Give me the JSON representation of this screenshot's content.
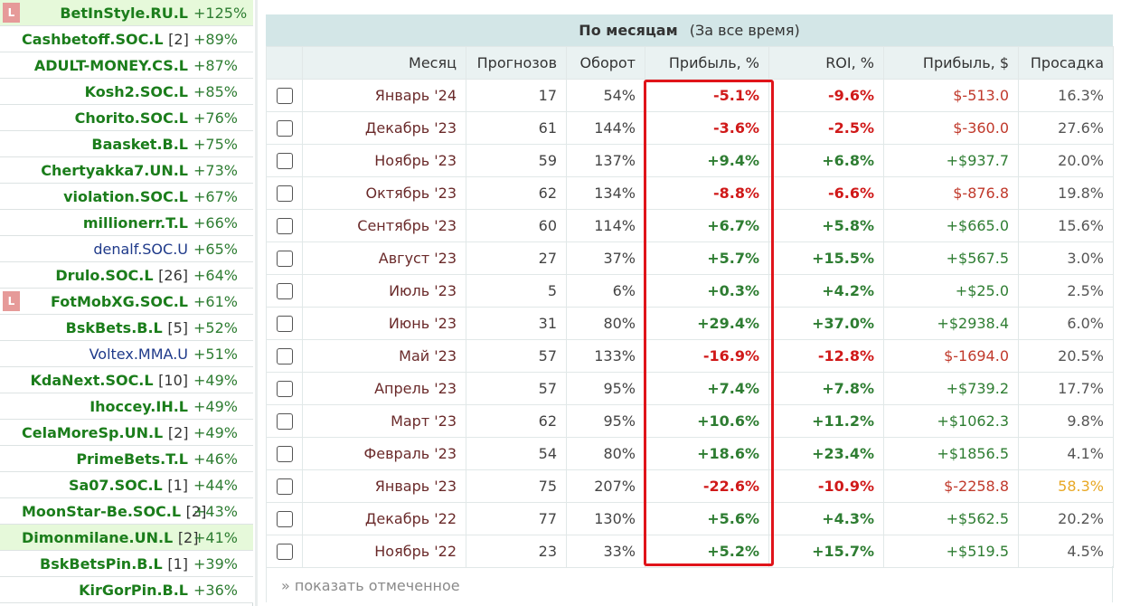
{
  "sidebar": {
    "items": [
      {
        "badge": "L",
        "name": "BetInStyle.RU.L",
        "count": "",
        "pct": "+125%",
        "style": "bold",
        "highlight": true
      },
      {
        "badge": "",
        "name": "Cashbetoff.SOC.L",
        "count": "[2]",
        "pct": "+89%",
        "style": "bold",
        "highlight": false
      },
      {
        "badge": "",
        "name": "ADULT-MONEY.CS.L",
        "count": "",
        "pct": "+87%",
        "style": "bold",
        "highlight": false
      },
      {
        "badge": "",
        "name": "Kosh2.SOC.L",
        "count": "",
        "pct": "+85%",
        "style": "bold",
        "highlight": false
      },
      {
        "badge": "",
        "name": "Chorito.SOC.L",
        "count": "",
        "pct": "+76%",
        "style": "bold",
        "highlight": false
      },
      {
        "badge": "",
        "name": "Baasket.B.L",
        "count": "",
        "pct": "+75%",
        "style": "bold",
        "highlight": false
      },
      {
        "badge": "",
        "name": "Chertyakka7.UN.L",
        "count": "",
        "pct": "+73%",
        "style": "bold",
        "highlight": false
      },
      {
        "badge": "",
        "name": "violation.SOC.L",
        "count": "",
        "pct": "+67%",
        "style": "bold",
        "highlight": false
      },
      {
        "badge": "",
        "name": "millionerr.T.L",
        "count": "",
        "pct": "+66%",
        "style": "bold",
        "highlight": false
      },
      {
        "badge": "",
        "name": "denalf.SOC.U",
        "count": "",
        "pct": "+65%",
        "style": "regular",
        "highlight": false
      },
      {
        "badge": "",
        "name": "Drulo.SOC.L",
        "count": "[26]",
        "pct": "+64%",
        "style": "bold",
        "highlight": false
      },
      {
        "badge": "L",
        "name": "FotMobXG.SOC.L",
        "count": "",
        "pct": "+61%",
        "style": "bold",
        "highlight": false
      },
      {
        "badge": "",
        "name": "BskBets.B.L",
        "count": "[5]",
        "pct": "+52%",
        "style": "bold",
        "highlight": false
      },
      {
        "badge": "",
        "name": "Voltex.MMA.U",
        "count": "",
        "pct": "+51%",
        "style": "regular",
        "highlight": false
      },
      {
        "badge": "",
        "name": "KdaNext.SOC.L",
        "count": "[10]",
        "pct": "+49%",
        "style": "bold",
        "highlight": false
      },
      {
        "badge": "",
        "name": "Ihoccey.IH.L",
        "count": "",
        "pct": "+49%",
        "style": "bold",
        "highlight": false
      },
      {
        "badge": "",
        "name": "CelaMoreSp.UN.L",
        "count": "[2]",
        "pct": "+49%",
        "style": "bold",
        "highlight": false
      },
      {
        "badge": "",
        "name": "PrimeBets.T.L",
        "count": "",
        "pct": "+46%",
        "style": "bold",
        "highlight": false
      },
      {
        "badge": "",
        "name": "Sa07.SOC.L",
        "count": "[1]",
        "pct": "+44%",
        "style": "bold",
        "highlight": false
      },
      {
        "badge": "",
        "name": "MoonStar-Be.SOC.L",
        "count": "[2]",
        "pct": "+43%",
        "style": "bold",
        "highlight": false
      },
      {
        "badge": "",
        "name": "Dimonmilane.UN.L",
        "count": "[2]",
        "pct": "+41%",
        "style": "bold",
        "highlight": true
      },
      {
        "badge": "",
        "name": "BskBetsPin.B.L",
        "count": "[1]",
        "pct": "+39%",
        "style": "bold",
        "highlight": false
      },
      {
        "badge": "",
        "name": "KirGorPin.B.L",
        "count": "",
        "pct": "+36%",
        "style": "bold",
        "highlight": false
      }
    ]
  },
  "panel": {
    "title": "По месяцам",
    "subtitle": "(За все время)",
    "columns": [
      "",
      "Месяц",
      "Прогнозов",
      "Оборот",
      "Прибыль, %",
      "ROI, %",
      "Прибыль, $",
      "Просадка"
    ],
    "rows": [
      {
        "month": "Январь '24",
        "forecasts": "17",
        "turnover": "54%",
        "profit_pct": "-5.1%",
        "roi": "-9.6%",
        "profit_usd": "$-513.0",
        "drawdown": "16.3%"
      },
      {
        "month": "Декабрь '23",
        "forecasts": "61",
        "turnover": "144%",
        "profit_pct": "-3.6%",
        "roi": "-2.5%",
        "profit_usd": "$-360.0",
        "drawdown": "27.6%"
      },
      {
        "month": "Ноябрь '23",
        "forecasts": "59",
        "turnover": "137%",
        "profit_pct": "+9.4%",
        "roi": "+6.8%",
        "profit_usd": "+$937.7",
        "drawdown": "20.0%"
      },
      {
        "month": "Октябрь '23",
        "forecasts": "62",
        "turnover": "134%",
        "profit_pct": "-8.8%",
        "roi": "-6.6%",
        "profit_usd": "$-876.8",
        "drawdown": "19.8%"
      },
      {
        "month": "Сентябрь '23",
        "forecasts": "60",
        "turnover": "114%",
        "profit_pct": "+6.7%",
        "roi": "+5.8%",
        "profit_usd": "+$665.0",
        "drawdown": "15.6%"
      },
      {
        "month": "Август '23",
        "forecasts": "27",
        "turnover": "37%",
        "profit_pct": "+5.7%",
        "roi": "+15.5%",
        "profit_usd": "+$567.5",
        "drawdown": "3.0%"
      },
      {
        "month": "Июль '23",
        "forecasts": "5",
        "turnover": "6%",
        "profit_pct": "+0.3%",
        "roi": "+4.2%",
        "profit_usd": "+$25.0",
        "drawdown": "2.5%"
      },
      {
        "month": "Июнь '23",
        "forecasts": "31",
        "turnover": "80%",
        "profit_pct": "+29.4%",
        "roi": "+37.0%",
        "profit_usd": "+$2938.4",
        "drawdown": "6.0%"
      },
      {
        "month": "Май '23",
        "forecasts": "57",
        "turnover": "133%",
        "profit_pct": "-16.9%",
        "roi": "-12.8%",
        "profit_usd": "$-1694.0",
        "drawdown": "20.5%"
      },
      {
        "month": "Апрель '23",
        "forecasts": "57",
        "turnover": "95%",
        "profit_pct": "+7.4%",
        "roi": "+7.8%",
        "profit_usd": "+$739.2",
        "drawdown": "17.7%"
      },
      {
        "month": "Март '23",
        "forecasts": "62",
        "turnover": "95%",
        "profit_pct": "+10.6%",
        "roi": "+11.2%",
        "profit_usd": "+$1062.3",
        "drawdown": "9.8%"
      },
      {
        "month": "Февраль '23",
        "forecasts": "54",
        "turnover": "80%",
        "profit_pct": "+18.6%",
        "roi": "+23.4%",
        "profit_usd": "+$1856.5",
        "drawdown": "4.1%"
      },
      {
        "month": "Январь '23",
        "forecasts": "75",
        "turnover": "207%",
        "profit_pct": "-22.6%",
        "roi": "-10.9%",
        "profit_usd": "$-2258.8",
        "drawdown": "58.3%"
      },
      {
        "month": "Декабрь '22",
        "forecasts": "77",
        "turnover": "130%",
        "profit_pct": "+5.6%",
        "roi": "+4.3%",
        "profit_usd": "+$562.5",
        "drawdown": "20.2%"
      },
      {
        "month": "Ноябрь '22",
        "forecasts": "23",
        "turnover": "33%",
        "profit_pct": "+5.2%",
        "roi": "+15.7%",
        "profit_usd": "+$519.5",
        "drawdown": "4.5%"
      }
    ],
    "show_selected_label": "» показать отмеченное"
  },
  "colors": {
    "positive": "#2e7d32",
    "negative": "#d01919",
    "highlight_border": "#e0141a",
    "header_bg": "#d3e6e7",
    "warning_drawdown": "#e8a825",
    "sidebar_highlight": "#e6f9da",
    "badge": "#e69a99"
  }
}
